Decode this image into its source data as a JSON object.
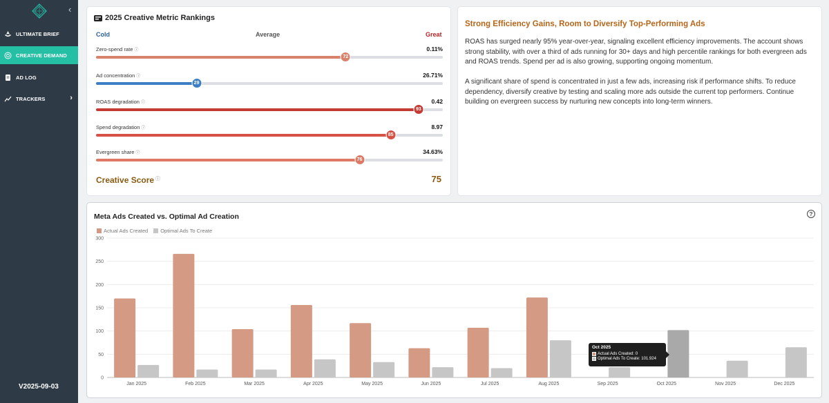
{
  "sidebar": {
    "logo_icon": "diamond-compass-icon",
    "items": [
      {
        "label": "ULTIMATE BRIEF",
        "icon": "rocket-icon"
      },
      {
        "label": "CREATIVE DEMAND",
        "icon": "target-icon"
      },
      {
        "label": "AD LOG",
        "icon": "document-icon"
      },
      {
        "label": "TRACKERS",
        "icon": "trend-line-icon"
      }
    ],
    "version": "V2025-09-03"
  },
  "rankings": {
    "title": "2025 Creative Metric Rankings",
    "scale": {
      "cold": "Cold",
      "average": "Average",
      "great": "Great"
    },
    "metrics": [
      {
        "name": "Zero-spend rate",
        "value": "0.11%",
        "percentile": 72,
        "color": "#d9826b"
      },
      {
        "name": "Ad concentration",
        "value": "26.71%",
        "percentile": 29,
        "color": "#3d7fc4"
      },
      {
        "name": "ROAS degradation",
        "value": "0.42",
        "percentile": 93,
        "color": "#c43a34"
      },
      {
        "name": "Spend degradation",
        "value": "8.97",
        "percentile": 85,
        "color": "#d65245"
      },
      {
        "name": "Evergreen share",
        "value": "34.63%",
        "percentile": 76,
        "color": "#dc7a65"
      }
    ],
    "score_label": "Creative Score",
    "score_value": "75"
  },
  "summary": {
    "title": "Strong Efficiency Gains, Room to Diversify Top-Performing Ads",
    "paragraphs": [
      "ROAS has surged nearly 95% year-over-year, signaling excellent efficiency improvements. The account shows strong stability, with over a third of ads running for 30+ days and high percentile rankings for both evergreen ads and ROAS trends. Spend per ad is also growing, supporting ongoing momentum.",
      "A significant share of spend is concentrated in just a few ads, increasing risk if performance shifts. To reduce dependency, diversify creative by testing and scaling more ads outside the current top performers. Continue building on evergreen success by nurturing new concepts into long-term winners."
    ]
  },
  "chart_data": {
    "type": "bar",
    "title": "Meta Ads Created vs. Optimal Ad Creation",
    "categories": [
      "Jan 2025",
      "Feb 2025",
      "Mar 2025",
      "Apr 2025",
      "May 2025",
      "Jun 2025",
      "Jul 2025",
      "Aug 2025",
      "Sep 2025",
      "Oct 2025",
      "Nov 2025",
      "Dec 2025"
    ],
    "series": [
      {
        "name": "Actual Ads Created",
        "color": "#d49a84",
        "values": [
          170,
          266,
          104,
          156,
          117,
          63,
          107,
          172,
          0,
          0,
          0,
          0
        ]
      },
      {
        "name": "Optimal Ads To Create",
        "color": "#c6c6c6",
        "values": [
          27,
          17,
          17,
          39,
          33,
          22,
          20,
          80,
          22,
          102,
          36,
          65
        ]
      }
    ],
    "ylim": [
      0,
      300
    ],
    "yticks": [
      0,
      50,
      100,
      150,
      200,
      250,
      300
    ],
    "grid": true,
    "legend": "top-left",
    "highlight_index": 9,
    "highlight_color": "#a9a9a9",
    "tooltip": {
      "title": "Oct 2025",
      "actual": "Actual Ads Created: 0",
      "optimal": "Optimal Ads To Create: 101.924"
    }
  }
}
